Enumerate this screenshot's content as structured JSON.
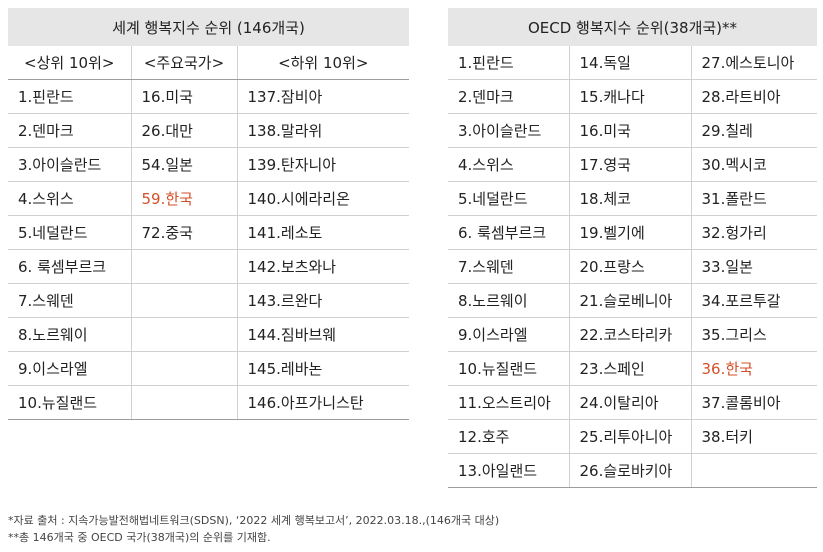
{
  "world": {
    "title": "세계 행복지수 순위 (146개국)",
    "headers": [
      "<상위 10위>",
      "<주요국가>",
      "<하위 10위>"
    ],
    "rows": [
      [
        "1.핀란드",
        "16.미국",
        "137.잠비아"
      ],
      [
        "2.덴마크",
        "26.대만",
        "138.말라위"
      ],
      [
        "3.아이슬란드",
        "54.일본",
        "139.탄자니아"
      ],
      [
        "4.스위스",
        "59.한국",
        "140.시에라리온"
      ],
      [
        "5.네덜란드",
        "72.중국",
        "141.레소토"
      ],
      [
        "6. 룩셈부르크",
        "",
        "142.보츠와나"
      ],
      [
        "7.스웨덴",
        "",
        "143.르완다"
      ],
      [
        "8.노르웨이",
        "",
        "144.짐바브웨"
      ],
      [
        "9.이스라엘",
        "",
        "145.레바논"
      ],
      [
        "10.뉴질랜드",
        "",
        "146.아프가니스탄"
      ]
    ]
  },
  "oecd": {
    "title": "OECD 행복지수 순위(38개국)**",
    "rows": [
      [
        "1.핀란드",
        "14.독일",
        "27.에스토니아"
      ],
      [
        "2.덴마크",
        "15.캐나다",
        "28.라트비아"
      ],
      [
        "3.아이슬란드",
        "16.미국",
        "29.칠레"
      ],
      [
        "4.스위스",
        "17.영국",
        "30.멕시코"
      ],
      [
        "5.네덜란드",
        "18.체코",
        "31.폴란드"
      ],
      [
        "6. 룩셈부르크",
        "19.벨기에",
        "32.헝가리"
      ],
      [
        "7.스웨덴",
        "20.프랑스",
        "33.일본"
      ],
      [
        "8.노르웨이",
        "21.슬로베니아",
        "34.포르투갈"
      ],
      [
        "9.이스라엘",
        "22.코스타리카",
        "35.그리스"
      ],
      [
        "10.뉴질랜드",
        "23.스페인",
        "36.한국"
      ],
      [
        "11.오스트리아",
        "24.이탈리아",
        "37.콜롬비아"
      ],
      [
        "12.호주",
        "25.리투아니아",
        "38.터키"
      ],
      [
        "13.아일랜드",
        "26.슬로바키아",
        ""
      ]
    ]
  },
  "notes": [
    "*자료 출처 : 지속가능발전해법네트워크(SDSN), ‘2022 세계 행복보고서’, 2022.03.18.,(146개국 대상)",
    "**총 146개국 중 OECD 국가(38개국)의 순위를 기재함."
  ],
  "colors": {
    "highlight": "#d4502a",
    "header_bg": "#e7e6e6"
  }
}
